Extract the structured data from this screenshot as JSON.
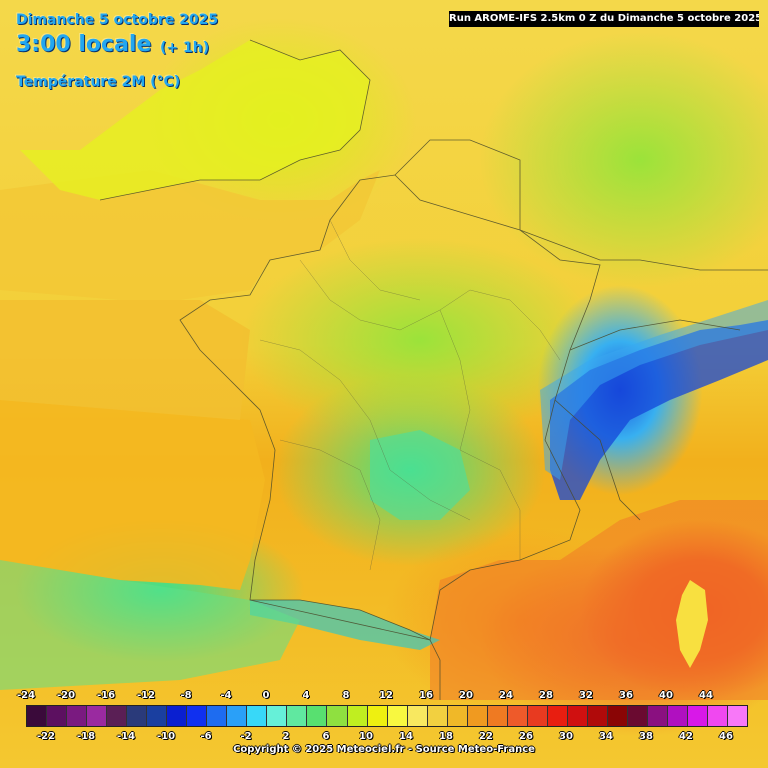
{
  "header": {
    "date": "Dimanche 5 octobre 2025",
    "time": "3:00 locale",
    "offset": "(+ 1h)",
    "variable": "Température 2M (°C)"
  },
  "run_info": "Run AROME-IFS 2.5km 0 Z du Dimanche 5 octobre 2025",
  "legend": {
    "top_labels": [
      "-24",
      "-20",
      "-16",
      "-12",
      "-8",
      "-4",
      "0",
      "4",
      "8",
      "12",
      "16",
      "20",
      "24",
      "28",
      "32",
      "36",
      "40",
      "44"
    ],
    "bottom_labels": [
      "-22",
      "-18",
      "-14",
      "-10",
      "-6",
      "-2",
      "2",
      "6",
      "10",
      "14",
      "18",
      "22",
      "26",
      "30",
      "34",
      "38",
      "42",
      "46"
    ],
    "colors": [
      "#3a0a3a",
      "#5c1060",
      "#7a1a80",
      "#9a2aa0",
      "#5a1f55",
      "#2a3a7a",
      "#1a3fa0",
      "#0a1fd0",
      "#1030f0",
      "#1e6cf0",
      "#2aa0f8",
      "#38d8f8",
      "#66f0d8",
      "#60e8a0",
      "#58e070",
      "#8fe040",
      "#c0ee20",
      "#eef010",
      "#f8f840",
      "#f8e860",
      "#f2d040",
      "#f0b828",
      "#f09a20",
      "#ef7a22",
      "#ee5a2a",
      "#e83a20",
      "#e81e10",
      "#d01010",
      "#b00a0a",
      "#8a0505",
      "#6a0a30",
      "#8a1080",
      "#b010c0",
      "#d818e8",
      "#f048f0",
      "#f878f8"
    ]
  },
  "copyright": "Copyright © 2025 Meteociel.fr - Source Meteo-France"
}
